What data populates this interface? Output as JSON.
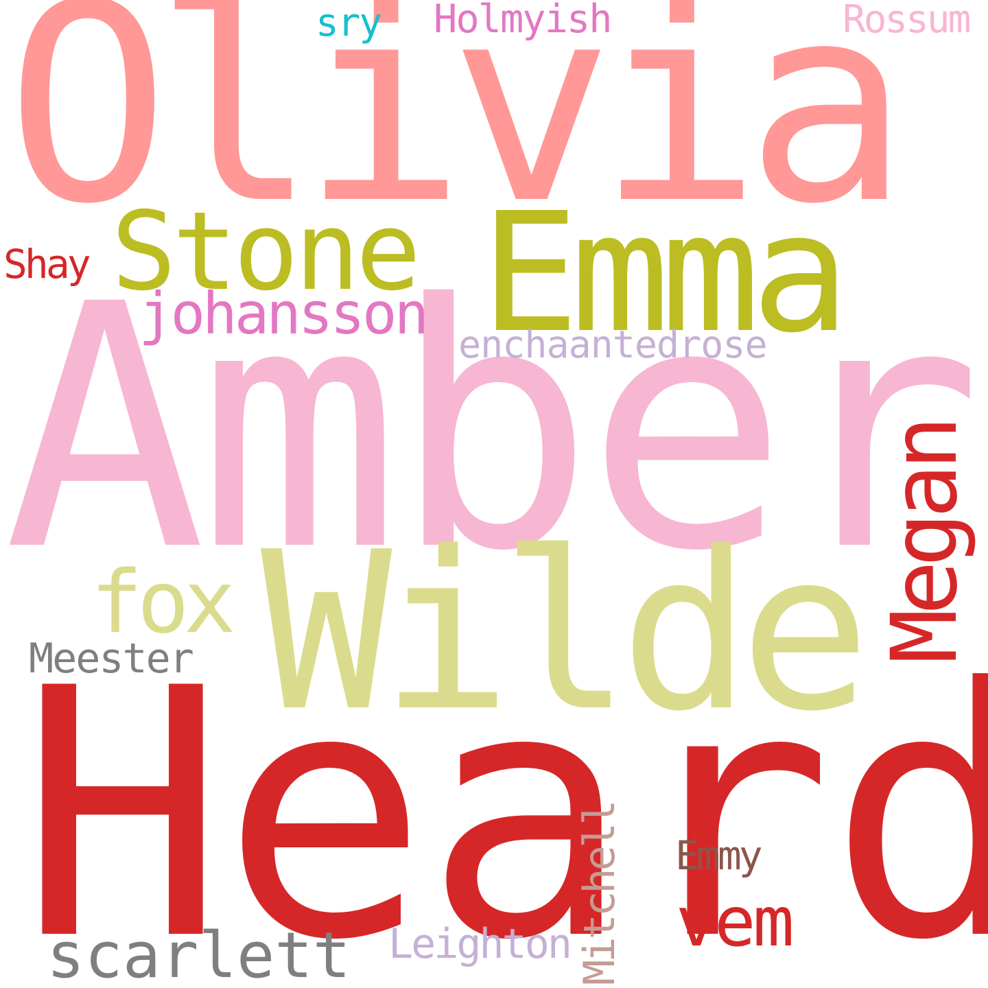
{
  "words": [
    {
      "id": "olivia",
      "text": "Olivia",
      "color": "#ff9896"
    },
    {
      "id": "amber",
      "text": "Amber",
      "color": "#f7b6d2"
    },
    {
      "id": "heard",
      "text": "Heard",
      "color": "#d62728"
    },
    {
      "id": "wilde",
      "text": "Wilde",
      "color": "#dbdb8d"
    },
    {
      "id": "emma",
      "text": "Emma",
      "color": "#bcbd22"
    },
    {
      "id": "stone",
      "text": "Stone",
      "color": "#bcbd22"
    },
    {
      "id": "megan",
      "text": "Megan",
      "color": "#d62728"
    },
    {
      "id": "fox",
      "text": "fox",
      "color": "#dbdb8d"
    },
    {
      "id": "johansson",
      "text": "johansson",
      "color": "#e377c2"
    },
    {
      "id": "enchaantedrose",
      "text": "enchaantedrose",
      "color": "#c5b0d5"
    },
    {
      "id": "scarlett",
      "text": "scarlett",
      "color": "#7f7f7f"
    },
    {
      "id": "vem",
      "text": "vem",
      "color": "#d62728"
    },
    {
      "id": "meester",
      "text": "Meester",
      "color": "#7f7f7f"
    },
    {
      "id": "leighton",
      "text": "Leighton",
      "color": "#c5b0d5"
    },
    {
      "id": "mitchell",
      "text": "Mitchell",
      "color": "#c49c94"
    },
    {
      "id": "emmy",
      "text": "Emmy",
      "color": "#8c564b"
    },
    {
      "id": "shay",
      "text": "Shay",
      "color": "#d62728"
    },
    {
      "id": "holmyish",
      "text": "Holmyish",
      "color": "#e377c2"
    },
    {
      "id": "rossum",
      "text": "Rossum",
      "color": "#f7b6d2"
    },
    {
      "id": "sry",
      "text": "sry",
      "color": "#17becf"
    }
  ]
}
